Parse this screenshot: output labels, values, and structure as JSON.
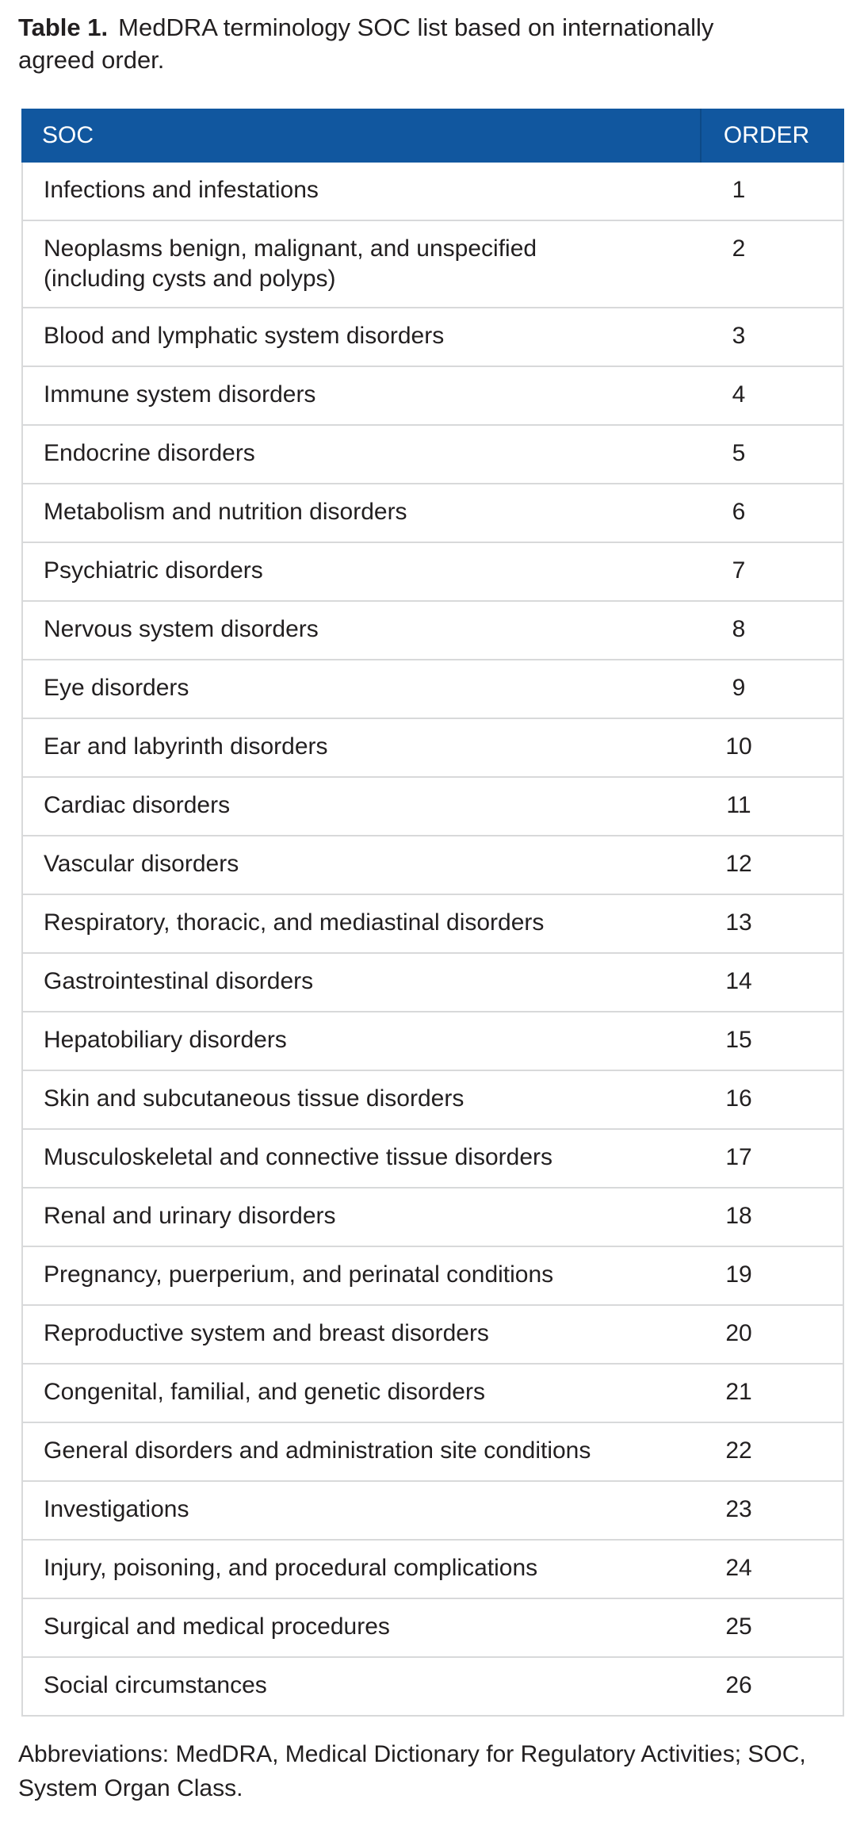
{
  "title": {
    "label": "Table 1.",
    "text": "MedDRA terminology SOC list based on internationally\nagreed order."
  },
  "table": {
    "columns": {
      "soc": "SOC",
      "order": "ORDER"
    },
    "rows": [
      {
        "soc": "Infections and infestations",
        "order": "1"
      },
      {
        "soc": "Neoplasms benign, malignant, and unspecified\n(including cysts and polyps)",
        "order": "2"
      },
      {
        "soc": "Blood and lymphatic system disorders",
        "order": "3"
      },
      {
        "soc": "Immune system disorders",
        "order": "4"
      },
      {
        "soc": "Endocrine disorders",
        "order": "5"
      },
      {
        "soc": "Metabolism and nutrition disorders",
        "order": "6"
      },
      {
        "soc": "Psychiatric disorders",
        "order": "7"
      },
      {
        "soc": "Nervous system disorders",
        "order": "8"
      },
      {
        "soc": "Eye disorders",
        "order": "9"
      },
      {
        "soc": "Ear and labyrinth disorders",
        "order": "10"
      },
      {
        "soc": "Cardiac disorders",
        "order": "11"
      },
      {
        "soc": "Vascular disorders",
        "order": "12"
      },
      {
        "soc": "Respiratory, thoracic, and mediastinal disorders",
        "order": "13"
      },
      {
        "soc": "Gastrointestinal disorders",
        "order": "14"
      },
      {
        "soc": "Hepatobiliary disorders",
        "order": "15"
      },
      {
        "soc": "Skin and subcutaneous tissue disorders",
        "order": "16"
      },
      {
        "soc": "Musculoskeletal and connective tissue disorders",
        "order": "17"
      },
      {
        "soc": "Renal and urinary disorders",
        "order": "18"
      },
      {
        "soc": "Pregnancy, puerperium, and perinatal conditions",
        "order": "19"
      },
      {
        "soc": "Reproductive system and breast disorders",
        "order": "20"
      },
      {
        "soc": "Congenital, familial, and genetic disorders",
        "order": "21"
      },
      {
        "soc": "General disorders and administration site conditions",
        "order": "22"
      },
      {
        "soc": "Investigations",
        "order": "23"
      },
      {
        "soc": "Injury, poisoning, and procedural complications",
        "order": "24"
      },
      {
        "soc": "Surgical and medical procedures",
        "order": "25"
      },
      {
        "soc": "Social circumstances",
        "order": "26"
      }
    ]
  },
  "footnote": "Abbreviations: MedDRA, Medical Dictionary for Regulatory Activities; SOC,\nSystem Organ Class.",
  "colors": {
    "header_bg": "#11579f",
    "header_divider": "#0d4a87",
    "row_border": "#d8d9da",
    "text": "#221f20",
    "header_text": "#ffffff"
  }
}
